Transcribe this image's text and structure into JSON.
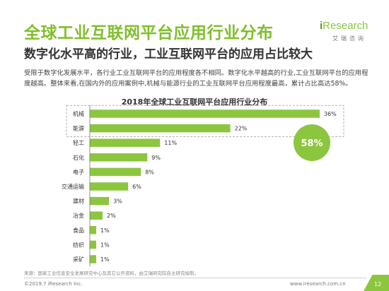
{
  "header": {
    "title": "全球工业互联网平台应用行业分布",
    "subtitle": "数字化水平高的行业，工业互联网平台的应用占比较大",
    "description": "受限于数字化发展水平，各行业工业互联网平台的应用程度各不相同。数字化水平越高的行业,工业互联网平台的应用程度越高。整体来看,在国内外的应用案例中,机械与能源行业的工业互联网平台应用程度最高，累计占比高达58%。"
  },
  "logo": {
    "i": "i",
    "word": "Research",
    "cn": "艾瑞咨询"
  },
  "chart_data": {
    "type": "bar",
    "orientation": "horizontal",
    "title": "2018年全球工业互联网平台应用行业分布",
    "categories": [
      "机械",
      "能源",
      "轻工",
      "石化",
      "电子",
      "交通运输",
      "建材",
      "冶金",
      "食品",
      "纺织",
      "采矿"
    ],
    "values": [
      36,
      22,
      11,
      9,
      8,
      6,
      3,
      2,
      1,
      1,
      1
    ],
    "value_suffix": "%",
    "xlim": [
      0,
      36
    ],
    "grid": false,
    "legend": "none",
    "bar_color": "#8cc63f",
    "callout": {
      "text": "58%",
      "covers": [
        "机械",
        "能源"
      ],
      "color": "#8cc63f"
    }
  },
  "footer": {
    "source": "来源：国家工业信息安全发展研究中心及其它公开资料，由艾瑞研究院自主研究绘制。",
    "copyright": "©2019.7 iResearch Inc.",
    "site": "www.iresearch.com.cn",
    "page": "12"
  }
}
